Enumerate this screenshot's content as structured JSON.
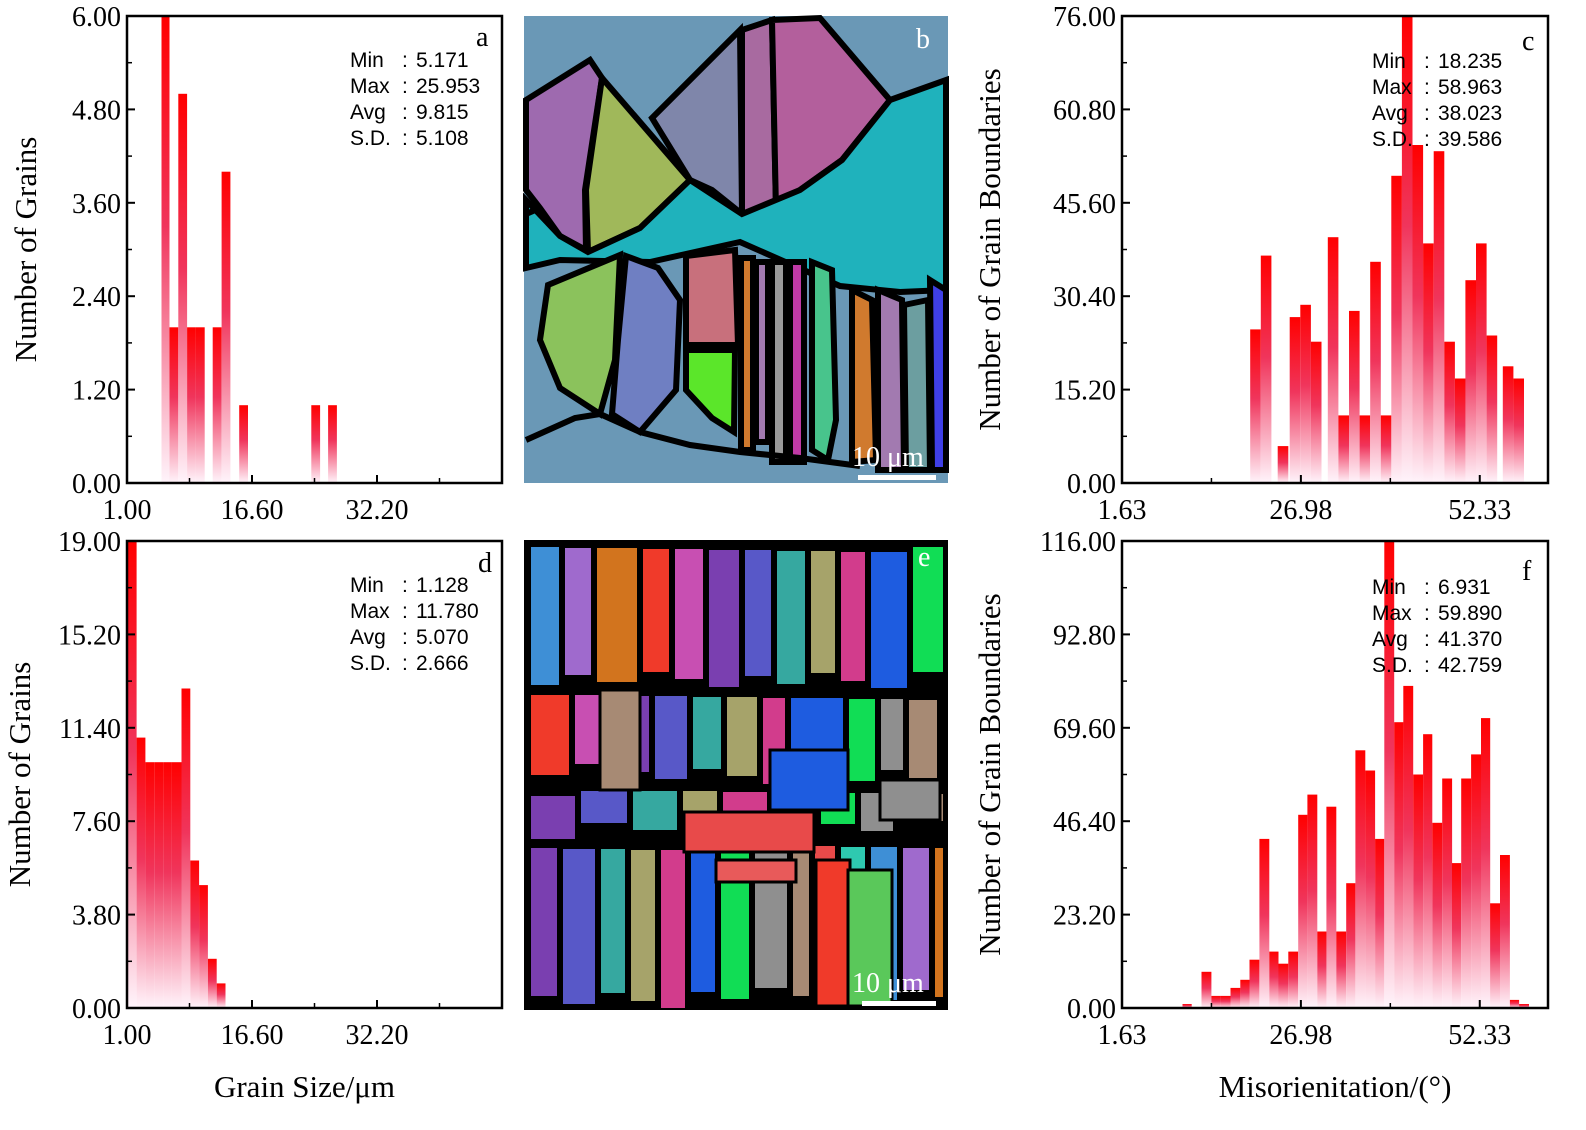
{
  "colors": {
    "bar_top": "#ff0000",
    "bar_mid": "#ef1c4a",
    "bar_bottom": "#fff4fb",
    "axis": "#000000"
  },
  "chart_data": [
    {
      "id": "a",
      "type": "bar",
      "panel_label": "a",
      "ylabel": "Number of Grains",
      "xlabel": "",
      "xlim": [
        1.0,
        47.8
      ],
      "ylim": [
        0,
        6.0
      ],
      "xticks": [
        "1.00",
        "16.60",
        "32.20"
      ],
      "xtick_values": [
        1.0,
        16.6,
        32.2
      ],
      "yticks": [
        "0.00",
        "1.20",
        "2.40",
        "3.60",
        "4.80",
        "6.00"
      ],
      "ytick_values": [
        0,
        1.2,
        2.4,
        3.6,
        4.8,
        6.0
      ],
      "stats": [
        {
          "label": "Min",
          "value": "5.171"
        },
        {
          "label": "Max",
          "value": "25.953"
        },
        {
          "label": "Avg",
          "value": "9.815"
        },
        {
          "label": "S.D.",
          "value": "5.108"
        }
      ],
      "bins": [
        [
          5.3,
          6.3,
          6.0
        ],
        [
          6.3,
          7.4,
          2.0
        ],
        [
          7.4,
          8.5,
          5.0
        ],
        [
          8.5,
          9.6,
          2.0
        ],
        [
          9.6,
          10.7,
          2.0
        ],
        [
          11.7,
          12.8,
          2.0
        ],
        [
          12.8,
          13.9,
          4.0
        ],
        [
          15.0,
          16.1,
          1.0
        ],
        [
          24.0,
          25.1,
          1.0
        ],
        [
          26.1,
          27.2,
          1.0
        ]
      ]
    },
    {
      "id": "c",
      "type": "bar",
      "panel_label": "c",
      "ylabel": "Number of Grain Boundaries",
      "xlabel": "",
      "xlim": [
        1.63,
        62.0
      ],
      "ylim": [
        0,
        76.0
      ],
      "xticks": [
        "1.63",
        "26.98",
        "52.33"
      ],
      "xtick_values": [
        1.63,
        26.98,
        52.33
      ],
      "yticks": [
        "0.00",
        "15.20",
        "30.40",
        "45.60",
        "60.80",
        "76.00"
      ],
      "ytick_values": [
        0,
        15.2,
        30.4,
        45.6,
        60.8,
        76.0
      ],
      "stats": [
        {
          "label": "Min",
          "value": "18.235"
        },
        {
          "label": "Max",
          "value": "58.963"
        },
        {
          "label": "Avg",
          "value": "38.023"
        },
        {
          "label": "S.D.",
          "value": "39.586"
        }
      ],
      "bins": [
        [
          19.8,
          21.3,
          25
        ],
        [
          21.3,
          22.8,
          37
        ],
        [
          23.7,
          25.2,
          6
        ],
        [
          25.4,
          26.9,
          27
        ],
        [
          26.9,
          28.4,
          29
        ],
        [
          28.4,
          29.9,
          23
        ],
        [
          30.8,
          32.3,
          40
        ],
        [
          32.3,
          33.8,
          11
        ],
        [
          33.8,
          35.3,
          28
        ],
        [
          35.3,
          36.8,
          11
        ],
        [
          36.8,
          38.3,
          36
        ],
        [
          38.3,
          39.8,
          11
        ],
        [
          39.8,
          41.3,
          50
        ],
        [
          41.3,
          42.8,
          76
        ],
        [
          42.8,
          44.3,
          55
        ],
        [
          44.3,
          45.8,
          39
        ],
        [
          45.8,
          47.3,
          54
        ],
        [
          47.3,
          48.8,
          23
        ],
        [
          48.8,
          50.3,
          17
        ],
        [
          50.3,
          51.8,
          33
        ],
        [
          51.8,
          53.3,
          39
        ],
        [
          53.3,
          54.8,
          24
        ],
        [
          55.6,
          57.1,
          19
        ],
        [
          57.1,
          58.6,
          17
        ]
      ]
    },
    {
      "id": "d",
      "type": "bar",
      "panel_label": "d",
      "ylabel": "Number of Grains",
      "xlabel": "Grain Size/μm",
      "xlim": [
        1.0,
        47.8
      ],
      "ylim": [
        0,
        19.0
      ],
      "xticks": [
        "1.00",
        "16.60",
        "32.20"
      ],
      "xtick_values": [
        1.0,
        16.6,
        32.2
      ],
      "yticks": [
        "0.00",
        "3.80",
        "7.60",
        "11.40",
        "15.20",
        "19.00"
      ],
      "ytick_values": [
        0,
        3.8,
        7.6,
        11.4,
        15.2,
        19.0
      ],
      "stats": [
        {
          "label": "Min",
          "value": "1.128"
        },
        {
          "label": "Max",
          "value": "11.780"
        },
        {
          "label": "Avg",
          "value": "5.070"
        },
        {
          "label": "S.D.",
          "value": "2.666"
        }
      ],
      "bins": [
        [
          1.0,
          2.2,
          19
        ],
        [
          2.2,
          3.3,
          11
        ],
        [
          3.3,
          4.4,
          10
        ],
        [
          4.4,
          5.5,
          10
        ],
        [
          5.5,
          6.6,
          10
        ],
        [
          6.6,
          7.8,
          10
        ],
        [
          7.8,
          8.9,
          13
        ],
        [
          8.9,
          10.0,
          6
        ],
        [
          10.0,
          11.1,
          5
        ],
        [
          11.1,
          12.2,
          2
        ],
        [
          12.2,
          13.3,
          1
        ]
      ]
    },
    {
      "id": "f",
      "type": "bar",
      "panel_label": "f",
      "ylabel": "Number of Grain Boundaries",
      "xlabel": "Misorienitation/(°)",
      "xlim": [
        1.63,
        62.0
      ],
      "ylim": [
        0,
        116.0
      ],
      "xticks": [
        "1.63",
        "26.98",
        "52.33"
      ],
      "xtick_values": [
        1.63,
        26.98,
        52.33
      ],
      "yticks": [
        "0.00",
        "23.20",
        "46.40",
        "69.60",
        "92.80",
        "116.00"
      ],
      "ytick_values": [
        0,
        23.2,
        46.4,
        69.6,
        92.8,
        116.0
      ],
      "stats": [
        {
          "label": "Min",
          "value": "6.931"
        },
        {
          "label": "Max",
          "value": "59.890"
        },
        {
          "label": "Avg",
          "value": "41.370"
        },
        {
          "label": "S.D.",
          "value": "42.759"
        }
      ],
      "bins": [
        [
          10.2,
          11.5,
          1
        ],
        [
          12.9,
          14.3,
          9
        ],
        [
          14.3,
          15.6,
          3
        ],
        [
          15.6,
          17.0,
          3
        ],
        [
          17.0,
          18.4,
          5
        ],
        [
          18.4,
          19.7,
          7
        ],
        [
          19.7,
          21.1,
          12
        ],
        [
          21.1,
          22.5,
          42
        ],
        [
          22.5,
          23.8,
          14
        ],
        [
          23.8,
          25.2,
          11
        ],
        [
          25.2,
          26.6,
          14
        ],
        [
          26.6,
          27.9,
          48
        ],
        [
          27.9,
          29.3,
          53
        ],
        [
          29.3,
          30.6,
          19
        ],
        [
          30.6,
          32.0,
          50
        ],
        [
          32.0,
          33.4,
          19
        ],
        [
          33.4,
          34.7,
          31
        ],
        [
          34.7,
          36.1,
          64
        ],
        [
          36.1,
          37.5,
          59
        ],
        [
          37.5,
          38.8,
          42
        ],
        [
          38.8,
          40.2,
          116
        ],
        [
          40.2,
          41.5,
          71
        ],
        [
          41.5,
          42.9,
          80
        ],
        [
          42.9,
          44.3,
          58
        ],
        [
          44.3,
          45.6,
          68
        ],
        [
          45.6,
          47.0,
          46
        ],
        [
          47.0,
          48.4,
          57
        ],
        [
          48.4,
          49.7,
          36
        ],
        [
          49.7,
          51.1,
          57
        ],
        [
          51.1,
          52.5,
          63
        ],
        [
          52.5,
          53.8,
          72
        ],
        [
          53.8,
          55.2,
          26
        ],
        [
          55.2,
          56.6,
          38
        ],
        [
          56.6,
          57.9,
          2
        ],
        [
          57.9,
          59.3,
          1
        ]
      ]
    }
  ],
  "maps": {
    "b": {
      "panel_label": "b",
      "scale_text": "10 μm",
      "grains": [
        {
          "color": "#6a98b6"
        },
        {
          "color": "#9e6aaf"
        },
        {
          "color": "#a0b85a"
        },
        {
          "color": "#7f86aa"
        },
        {
          "color": "#b35f9c"
        },
        {
          "color": "#1fb2bc"
        },
        {
          "color": "#8bc25c"
        },
        {
          "color": "#6f7fc2"
        },
        {
          "color": "#c8707c"
        },
        {
          "color": "#5be62a"
        },
        {
          "color": "#d07a2e"
        },
        {
          "color": "#a27ab0"
        },
        {
          "color": "#48c48c"
        },
        {
          "color": "#c03aa6"
        },
        {
          "color": "#3f3fe6"
        },
        {
          "color": "#6c9ea0"
        }
      ]
    },
    "e": {
      "panel_label": "e",
      "scale_text": "10 μm",
      "grains": [
        {
          "color": "#3e8fd6"
        },
        {
          "color": "#a78a74"
        },
        {
          "color": "#1e5ce0"
        },
        {
          "color": "#36a8a0"
        },
        {
          "color": "#c84fb2"
        },
        {
          "color": "#9f6acd"
        },
        {
          "color": "#e84a4a"
        },
        {
          "color": "#11dd55"
        },
        {
          "color": "#a6a36a"
        },
        {
          "color": "#7a3fb0"
        },
        {
          "color": "#d2741e"
        },
        {
          "color": "#2ec9b0"
        },
        {
          "color": "#8f8f8f"
        },
        {
          "color": "#d23c8c"
        },
        {
          "color": "#5858c8"
        },
        {
          "color": "#f03a2a"
        }
      ]
    }
  }
}
